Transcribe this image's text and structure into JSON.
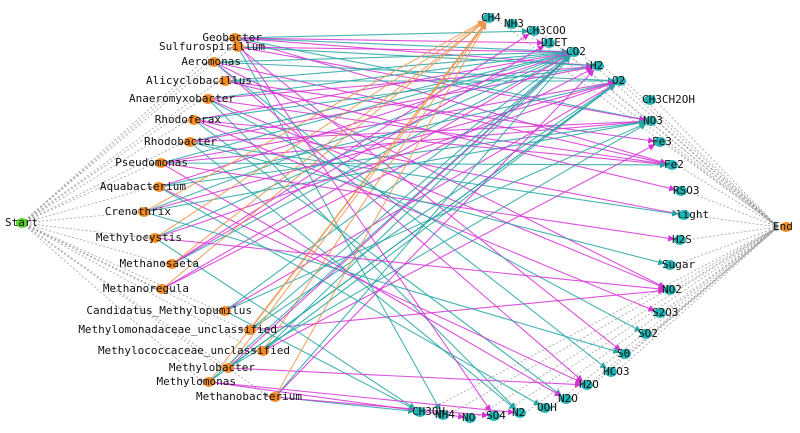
{
  "colors": {
    "taxon_node": "#f28c28",
    "compound_node": "#1fb3b3",
    "start_node": "#55d62b",
    "end_node": "#f28c28",
    "edge_teal": "#27a6a4",
    "edge_magenta": "#d633d6",
    "edge_orange": "#ee9650",
    "edge_grey": "#9a9a9a"
  },
  "start": {
    "label": "Start"
  },
  "end": {
    "label": "End"
  },
  "taxa": [
    {
      "id": "Geobacter",
      "label": "Geobacter"
    },
    {
      "id": "Sulfurospirillum",
      "label": "Sulfurospirillum"
    },
    {
      "id": "Aeromonas",
      "label": "Aeromonas"
    },
    {
      "id": "Alicyclobacillus",
      "label": "Alicyclobacillus"
    },
    {
      "id": "Anaeromyxobacter",
      "label": "Anaeromyxobacter"
    },
    {
      "id": "Rhodoferax",
      "label": "Rhodoferax"
    },
    {
      "id": "Rhodobacter",
      "label": "Rhodobacter"
    },
    {
      "id": "Pseudomonas",
      "label": "Pseudomonas"
    },
    {
      "id": "Aquabacterium",
      "label": "Aquabacterium"
    },
    {
      "id": "Crenothrix",
      "label": "Crenothrix"
    },
    {
      "id": "Methylocystis",
      "label": "Methylocystis"
    },
    {
      "id": "Methanosaeta",
      "label": "Methanosaeta"
    },
    {
      "id": "Methanoregula",
      "label": "Methanoregula"
    },
    {
      "id": "Candidatus_Methylopumilus",
      "label": "Candidatus_Methylopumilus"
    },
    {
      "id": "Methylomonadaceae_unclassified",
      "label": "Methylomonadaceae_unclassified"
    },
    {
      "id": "Methylococcaceae_unclassified",
      "label": "Methylococcaceae_unclassified"
    },
    {
      "id": "Methylobacter",
      "label": "Methylobacter"
    },
    {
      "id": "Methylomonas",
      "label": "Methylomonas"
    },
    {
      "id": "Methanobacterium",
      "label": "Methanobacterium"
    }
  ],
  "compounds": [
    {
      "id": "CH4",
      "label": "CH4"
    },
    {
      "id": "NH3",
      "label": "NH3"
    },
    {
      "id": "CH3COO",
      "label": "CH3COO"
    },
    {
      "id": "DIET",
      "label": "DIET"
    },
    {
      "id": "CO2",
      "label": "CO2"
    },
    {
      "id": "H2",
      "label": "H2"
    },
    {
      "id": "O2",
      "label": "O2"
    },
    {
      "id": "CH3CH2OH",
      "label": "CH3CH2OH"
    },
    {
      "id": "NO3",
      "label": "NO3"
    },
    {
      "id": "Fe3",
      "label": "Fe3"
    },
    {
      "id": "Fe2",
      "label": "Fe2"
    },
    {
      "id": "RSO3",
      "label": "RSO3"
    },
    {
      "id": "light",
      "label": "light"
    },
    {
      "id": "H2S",
      "label": "H2S"
    },
    {
      "id": "Sugar",
      "label": "Sugar"
    },
    {
      "id": "NO2",
      "label": "NO2"
    },
    {
      "id": "S2O3",
      "label": "S2O3"
    },
    {
      "id": "SO2",
      "label": "SO2"
    },
    {
      "id": "S0",
      "label": "S0"
    },
    {
      "id": "HCO3",
      "label": "HCO3"
    },
    {
      "id": "H2O",
      "label": "H2O"
    },
    {
      "id": "N2O",
      "label": "N2O"
    },
    {
      "id": "OOH",
      "label": "OOH"
    },
    {
      "id": "N2",
      "label": "N2"
    },
    {
      "id": "SO4",
      "label": "SO4"
    },
    {
      "id": "NO",
      "label": "NO"
    },
    {
      "id": "NH4",
      "label": "NH4"
    },
    {
      "id": "CH3OH",
      "label": "CH3OH"
    }
  ],
  "edges": [
    [
      "Geobacter",
      "CO2",
      "teal"
    ],
    [
      "Geobacter",
      "Fe2",
      "magenta"
    ],
    [
      "Geobacter",
      "CH3COO",
      "teal"
    ],
    [
      "Geobacter",
      "H2",
      "magenta"
    ],
    [
      "Geobacter",
      "DIET",
      "magenta"
    ],
    [
      "Geobacter",
      "NO3",
      "teal"
    ],
    [
      "Sulfurospirillum",
      "CO2",
      "magenta"
    ],
    [
      "Sulfurospirillum",
      "H2",
      "teal"
    ],
    [
      "Sulfurospirillum",
      "NO3",
      "magenta"
    ],
    [
      "Sulfurospirillum",
      "S0",
      "magenta"
    ],
    [
      "Sulfurospirillum",
      "NH4",
      "teal"
    ],
    [
      "Aeromonas",
      "CO2",
      "teal"
    ],
    [
      "Aeromonas",
      "Fe2",
      "magenta"
    ],
    [
      "Aeromonas",
      "NO2",
      "magenta"
    ],
    [
      "Aeromonas",
      "O2",
      "teal"
    ],
    [
      "Aeromonas",
      "H2O",
      "magenta"
    ],
    [
      "Alicyclobacillus",
      "CO2",
      "teal"
    ],
    [
      "Alicyclobacillus",
      "Fe3",
      "magenta"
    ],
    [
      "Alicyclobacillus",
      "O2",
      "teal"
    ],
    [
      "Anaeromyxobacter",
      "CO2",
      "teal"
    ],
    [
      "Anaeromyxobacter",
      "Fe2",
      "magenta"
    ],
    [
      "Anaeromyxobacter",
      "NO2",
      "magenta"
    ],
    [
      "Anaeromyxobacter",
      "H2",
      "magenta"
    ],
    [
      "Anaeromyxobacter",
      "N2",
      "teal"
    ],
    [
      "Rhodoferax",
      "CO2",
      "magenta"
    ],
    [
      "Rhodoferax",
      "Fe2",
      "magenta"
    ],
    [
      "Rhodoferax",
      "N2O",
      "teal"
    ],
    [
      "Rhodoferax",
      "H2",
      "teal"
    ],
    [
      "Rhodoferax",
      "light",
      "magenta"
    ],
    [
      "Rhodobacter",
      "CO2",
      "teal"
    ],
    [
      "Rhodobacter",
      "H2",
      "magenta"
    ],
    [
      "Rhodobacter",
      "NO3",
      "magenta"
    ],
    [
      "Rhodobacter",
      "N2",
      "teal"
    ],
    [
      "Rhodobacter",
      "light",
      "teal"
    ],
    [
      "Pseudomonas",
      "CO2",
      "teal"
    ],
    [
      "Pseudomonas",
      "NO3",
      "magenta"
    ],
    [
      "Pseudomonas",
      "N2O",
      "magenta"
    ],
    [
      "Pseudomonas",
      "Fe2",
      "teal"
    ],
    [
      "Pseudomonas",
      "O2",
      "magenta"
    ],
    [
      "Aquabacterium",
      "CO2",
      "magenta"
    ],
    [
      "Aquabacterium",
      "NO3",
      "teal"
    ],
    [
      "Aquabacterium",
      "H2O",
      "magenta"
    ],
    [
      "Aquabacterium",
      "O2",
      "teal"
    ],
    [
      "Crenothrix",
      "CH4",
      "orange"
    ],
    [
      "Crenothrix",
      "CO2",
      "teal"
    ],
    [
      "Crenothrix",
      "O2",
      "magenta"
    ],
    [
      "Crenothrix",
      "NO3",
      "teal"
    ],
    [
      "Methylocystis",
      "CH4",
      "orange"
    ],
    [
      "Methylocystis",
      "CO2",
      "teal"
    ],
    [
      "Methylocystis",
      "O2",
      "magenta"
    ],
    [
      "Methylocystis",
      "CH3OH",
      "teal"
    ],
    [
      "Methanosaeta",
      "CH3COO",
      "magenta"
    ],
    [
      "Methanosaeta",
      "CO2",
      "teal"
    ],
    [
      "Methanosaeta",
      "DIET",
      "magenta"
    ],
    [
      "Methanosaeta",
      "CH4",
      "orange"
    ],
    [
      "Methanoregula",
      "CO2",
      "magenta"
    ],
    [
      "Methanoregula",
      "H2",
      "magenta"
    ],
    [
      "Methanoregula",
      "CH4",
      "orange"
    ],
    [
      "Candidatus_Methylopumilus",
      "CH3OH",
      "teal"
    ],
    [
      "Candidatus_Methylopumilus",
      "CO2",
      "teal"
    ],
    [
      "Candidatus_Methylopumilus",
      "O2",
      "magenta"
    ],
    [
      "Candidatus_Methylopumilus",
      "NO3",
      "teal"
    ],
    [
      "Methylomonadaceae_unclassified",
      "CH4",
      "orange"
    ],
    [
      "Methylomonadaceae_unclassified",
      "CO2",
      "teal"
    ],
    [
      "Methylomonadaceae_unclassified",
      "NO2",
      "magenta"
    ],
    [
      "Methylomonadaceae_unclassified",
      "O2",
      "teal"
    ],
    [
      "Methylococcaceae_unclassified",
      "CH4",
      "orange"
    ],
    [
      "Methylococcaceae_unclassified",
      "O2",
      "teal"
    ],
    [
      "Methylococcaceae_unclassified",
      "CO2",
      "teal"
    ],
    [
      "Methylococcaceae_unclassified",
      "Fe3",
      "magenta"
    ],
    [
      "Methylobacter",
      "CH4",
      "orange"
    ],
    [
      "Methylobacter",
      "O2",
      "teal"
    ],
    [
      "Methylobacter",
      "CO2",
      "magenta"
    ],
    [
      "Methylobacter",
      "NO3",
      "teal"
    ],
    [
      "Methylobacter",
      "H2O",
      "magenta"
    ],
    [
      "Methylomonas",
      "CH4",
      "orange"
    ],
    [
      "Methylomonas",
      "O2",
      "teal"
    ],
    [
      "Methylomonas",
      "CO2",
      "teal"
    ],
    [
      "Methylomonas",
      "N2",
      "magenta"
    ],
    [
      "Methylomonas",
      "NO",
      "magenta"
    ],
    [
      "Methanobacterium",
      "CH4",
      "orange"
    ],
    [
      "Methanobacterium",
      "CO2",
      "teal"
    ],
    [
      "Methanobacterium",
      "H2",
      "magenta"
    ],
    [
      "Methanobacterium",
      "CH3OH",
      "teal"
    ],
    [
      "Methanobacterium",
      "SO4",
      "magenta"
    ],
    [
      "Geobacter",
      "SO4",
      "magenta"
    ],
    [
      "Aeromonas",
      "HCO3",
      "teal"
    ],
    [
      "Rhodoferax",
      "S2O3",
      "magenta"
    ],
    [
      "Pseudomonas",
      "H2S",
      "magenta"
    ],
    [
      "Aquabacterium",
      "OOH",
      "teal"
    ],
    [
      "Rhodobacter",
      "Sugar",
      "teal"
    ],
    [
      "Alicyclobacillus",
      "RSO3",
      "magenta"
    ],
    [
      "Anaeromyxobacter",
      "SO2",
      "teal"
    ],
    [
      "Crenothrix",
      "S0",
      "teal"
    ],
    [
      "Methylocystis",
      "NO2",
      "magenta"
    ]
  ]
}
